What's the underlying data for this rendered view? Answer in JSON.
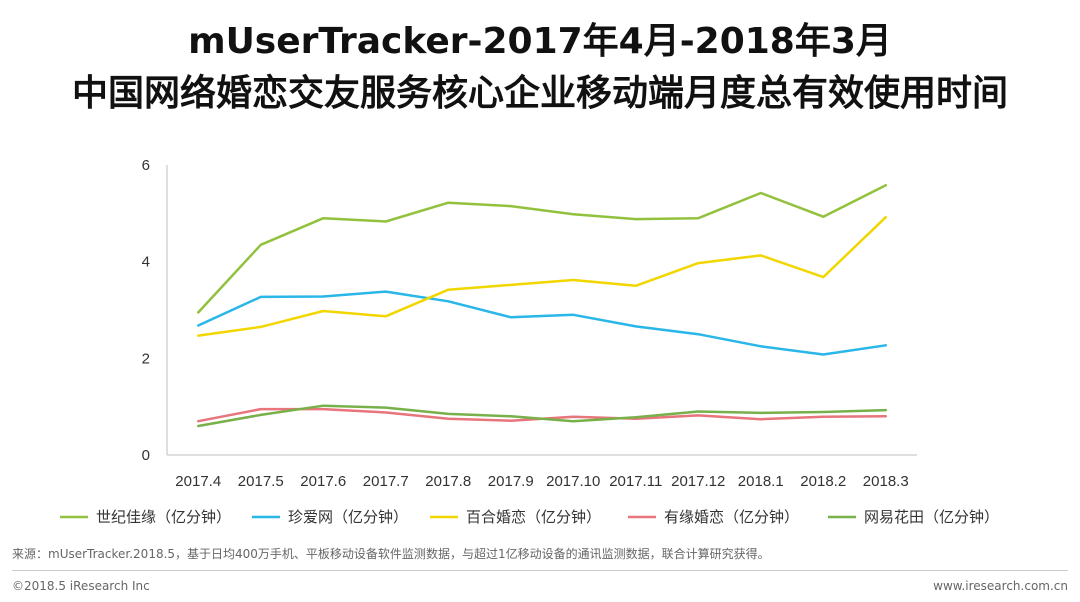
{
  "title_line1": "mUserTracker-2017年4月-2018年3月",
  "title_line2": "中国网络婚恋交友服务核心企业移动端月度总有效使用时间",
  "chart_data": {
    "type": "line",
    "categories": [
      "2017.4",
      "2017.5",
      "2017.6",
      "2017.7",
      "2017.8",
      "2017.9",
      "2017.10",
      "2017.11",
      "2017.12",
      "2018.1",
      "2018.2",
      "2018.3"
    ],
    "ylim": [
      0,
      6
    ],
    "yticks": [
      "0",
      "2",
      "4",
      "6"
    ],
    "series": [
      {
        "name": "世纪佳缘（亿分钟）",
        "color": "#92c13e",
        "values": [
          2.95,
          4.35,
          4.9,
          4.83,
          5.22,
          5.15,
          4.98,
          4.88,
          4.9,
          5.42,
          4.93,
          5.58
        ]
      },
      {
        "name": "珍爱网（亿分钟）",
        "color": "#29b6e8",
        "values": [
          2.68,
          3.27,
          3.28,
          3.38,
          3.18,
          2.85,
          2.9,
          2.66,
          2.5,
          2.25,
          2.08,
          2.27
        ]
      },
      {
        "name": "百合婚恋（亿分钟）",
        "color": "#f2d600",
        "values": [
          2.47,
          2.65,
          2.98,
          2.87,
          3.42,
          3.52,
          3.62,
          3.5,
          3.97,
          4.13,
          3.68,
          4.92
        ]
      },
      {
        "name": "有缘婚恋（亿分钟）",
        "color": "#e8747c",
        "values": [
          0.7,
          0.95,
          0.95,
          0.88,
          0.75,
          0.71,
          0.79,
          0.75,
          0.82,
          0.74,
          0.79,
          0.8
        ]
      },
      {
        "name": "网易花田（亿分钟）",
        "color": "#78b04a",
        "values": [
          0.6,
          0.83,
          1.02,
          0.98,
          0.85,
          0.8,
          0.7,
          0.78,
          0.9,
          0.87,
          0.89,
          0.93
        ]
      }
    ]
  },
  "source_text": "来源：mUserTracker.2018.5，基于日均400万手机、平板移动设备软件监测数据，与超过1亿移动设备的通讯监测数据，联合计算研究获得。",
  "footer_left": "©2018.5 iResearch Inc",
  "footer_right": "www.iresearch.com.cn"
}
